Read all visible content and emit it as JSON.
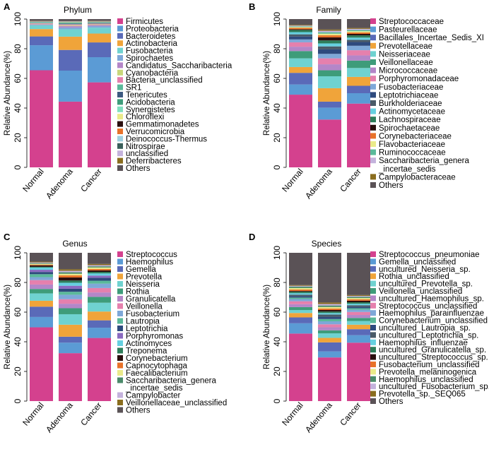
{
  "y_axis_label": "Relative Abundance(%)",
  "x_categories": [
    "Normal",
    "Adenoma",
    "Cancer"
  ],
  "panels": [
    {
      "letter": "A",
      "title": "Phylum"
    },
    {
      "letter": "B",
      "title": "Family"
    },
    {
      "letter": "C",
      "title": "Genus"
    },
    {
      "letter": "D",
      "title": "Species"
    }
  ],
  "chart_data": [
    {
      "type": "bar",
      "stacked": true,
      "panel": "A",
      "title": "Phylum",
      "ylabel": "Relative Abundance(%)",
      "ylim": [
        0,
        100
      ],
      "categories": [
        "Normal",
        "Adenoma",
        "Cancer"
      ],
      "series": [
        {
          "name": "Firmicutes",
          "color": "#d4418e",
          "values": [
            66,
            44.5,
            57.5
          ]
        },
        {
          "name": "Proteobacteria",
          "color": "#5b9bd5",
          "values": [
            17,
            21,
            17
          ]
        },
        {
          "name": "Bacteroidetes",
          "color": "#5a6ab8",
          "values": [
            6,
            14,
            10
          ]
        },
        {
          "name": "Actinobacteria",
          "color": "#f0a43a",
          "values": [
            5,
            9,
            6
          ]
        },
        {
          "name": "Fusobacteria",
          "color": "#6fd2d0",
          "values": [
            2.5,
            5,
            4
          ]
        },
        {
          "name": "Spirochaetes",
          "color": "#7ea8d8",
          "values": [
            0.4,
            1.2,
            1
          ]
        },
        {
          "name": "Candidatus_Saccharibacteria",
          "color": "#b486c8",
          "values": [
            0.4,
            1,
            0.8
          ]
        },
        {
          "name": "Cyanobacteria",
          "color": "#c9d77a",
          "values": [
            0.3,
            0.5,
            0.4
          ]
        },
        {
          "name": "Bacteria_unclassified",
          "color": "#e580ad",
          "values": [
            0.4,
            0.6,
            0.5
          ]
        },
        {
          "name": "SR1",
          "color": "#5bb99a",
          "values": [
            0.3,
            0.5,
            0.4
          ]
        },
        {
          "name": "Tenericutes",
          "color": "#3d5a80",
          "values": [
            0.2,
            0.3,
            0.3
          ]
        },
        {
          "name": "Acidobacteria",
          "color": "#3e9c7a",
          "values": [
            0.2,
            0.3,
            0.2
          ]
        },
        {
          "name": "Synergistetes",
          "color": "#80dfc0",
          "values": [
            0.2,
            0.3,
            0.2
          ]
        },
        {
          "name": "Chloroflexi",
          "color": "#eaea8a",
          "values": [
            0.1,
            0.2,
            0.2
          ]
        },
        {
          "name": "Gemmatimonadetes",
          "color": "#2a0e0e",
          "values": [
            0.1,
            0.1,
            0.1
          ]
        },
        {
          "name": "Verrucomicrobia",
          "color": "#e8722a",
          "values": [
            0.1,
            0.1,
            0.1
          ]
        },
        {
          "name": "Deinococcus-Thermus",
          "color": "#a0d0e0",
          "values": [
            0.1,
            0.1,
            0.1
          ]
        },
        {
          "name": "Nitrospirae",
          "color": "#3a5f5a",
          "values": [
            0.1,
            0.1,
            0.1
          ]
        },
        {
          "name": "unclassified",
          "color": "#c4b2dc",
          "values": [
            0.1,
            0.1,
            0.1
          ]
        },
        {
          "name": "Deferribacteres",
          "color": "#8a6d1e",
          "values": [
            0.1,
            0.1,
            0.1
          ]
        },
        {
          "name": "Others",
          "color": "#5a5256",
          "values": [
            1.2,
            1.4,
            1.2
          ]
        }
      ]
    },
    {
      "type": "bar",
      "stacked": true,
      "panel": "B",
      "title": "Family",
      "ylabel": "Relative Abundance(%)",
      "ylim": [
        0,
        100
      ],
      "categories": [
        "Normal",
        "Adenoma",
        "Cancer"
      ],
      "series": [
        {
          "name": "Streptococcaceae",
          "color": "#d4418e",
          "values": [
            50,
            32,
            43
          ]
        },
        {
          "name": "Pasteurellaceae",
          "color": "#5b9bd5",
          "values": [
            7,
            8,
            7
          ]
        },
        {
          "name": "Bacillales_Incertae_Sedis_XI",
          "color": "#5a6ab8",
          "values": [
            8,
            4,
            5
          ]
        },
        {
          "name": "Prevotellaceae",
          "color": "#f0a43a",
          "values": [
            4,
            9,
            6
          ]
        },
        {
          "name": "Neisseriaceae",
          "color": "#6fd2d0",
          "values": [
            6,
            8,
            6
          ]
        },
        {
          "name": "Veillonellaceae",
          "color": "#3e9c7a",
          "values": [
            5,
            4,
            5
          ]
        },
        {
          "name": "Micrococcaceae",
          "color": "#b486c8",
          "values": [
            3,
            4,
            3.5
          ]
        },
        {
          "name": "Porphyromonadaceae",
          "color": "#e580ad",
          "values": [
            3,
            4,
            3.5
          ]
        },
        {
          "name": "Fusobacteriaceae",
          "color": "#7ea8d8",
          "values": [
            2,
            3,
            3
          ]
        },
        {
          "name": "Leptotrichiaceae",
          "color": "#2e4a7e",
          "values": [
            2,
            3,
            2.5
          ]
        },
        {
          "name": "Burkholderiaceae",
          "color": "#4a5a68",
          "values": [
            1.5,
            2,
            1.5
          ]
        },
        {
          "name": "Actinomycetaceae",
          "color": "#66d0e0",
          "values": [
            1.5,
            2,
            1.5
          ]
        },
        {
          "name": "Lachnospiraceae",
          "color": "#2e7d5a",
          "values": [
            1.5,
            2,
            1.5
          ]
        },
        {
          "name": "Spirochaetaceae",
          "color": "#2a0e0e",
          "values": [
            0.5,
            2,
            1
          ]
        },
        {
          "name": "Corynebacteriaceae",
          "color": "#e8722a",
          "values": [
            1,
            1.5,
            1
          ]
        },
        {
          "name": "Flavobacteriaceae",
          "color": "#eaea8a",
          "values": [
            0.5,
            1,
            0.8
          ]
        },
        {
          "name": "Ruminococcaceae",
          "color": "#5bb99a",
          "values": [
            0.5,
            1,
            0.8
          ]
        },
        {
          "name": "Saccharibacteria_genera_incertae_sedis",
          "color": "#c4b2dc",
          "values": [
            0.5,
            1,
            0.8
          ]
        },
        {
          "name": "Campylobacteraceae",
          "color": "#8a6d1e",
          "values": [
            0.5,
            0.8,
            0.6
          ]
        },
        {
          "name": "Others",
          "color": "#5a5256",
          "values": [
            4,
            7,
            6
          ]
        }
      ]
    },
    {
      "type": "bar",
      "stacked": true,
      "panel": "C",
      "title": "Genus",
      "ylabel": "Relative Abundance(%)",
      "ylim": [
        0,
        100
      ],
      "categories": [
        "Normal",
        "Adenoma",
        "Cancer"
      ],
      "series": [
        {
          "name": "Streptococcus",
          "color": "#d4418e",
          "values": [
            50,
            32,
            43
          ]
        },
        {
          "name": "Haemophilus",
          "color": "#5b9bd5",
          "values": [
            7,
            7,
            7
          ]
        },
        {
          "name": "Gemella",
          "color": "#5a6ab8",
          "values": [
            7,
            4,
            5
          ]
        },
        {
          "name": "Prevotella",
          "color": "#f0a43a",
          "values": [
            4,
            8,
            6
          ]
        },
        {
          "name": "Neisseria",
          "color": "#6fd2d0",
          "values": [
            5,
            7,
            6
          ]
        },
        {
          "name": "Rothia",
          "color": "#3e9c7a",
          "values": [
            3,
            4,
            4
          ]
        },
        {
          "name": "Granulicatella",
          "color": "#b486c8",
          "values": [
            3,
            3,
            3
          ]
        },
        {
          "name": "Veillonella",
          "color": "#e580ad",
          "values": [
            3,
            3,
            3
          ]
        },
        {
          "name": "Fusobacterium",
          "color": "#7ea8d8",
          "values": [
            2,
            3,
            3
          ]
        },
        {
          "name": "Lautropia",
          "color": "#5bb99a",
          "values": [
            2,
            2,
            2
          ]
        },
        {
          "name": "Leptotrichia",
          "color": "#2e4a7e",
          "values": [
            1.5,
            2,
            2
          ]
        },
        {
          "name": "Porphyromonas",
          "color": "#8a6ac0",
          "values": [
            1.5,
            2,
            1.5
          ]
        },
        {
          "name": "Actinomyces",
          "color": "#66d0e0",
          "values": [
            1.5,
            2,
            1.5
          ]
        },
        {
          "name": "Treponema",
          "color": "#2e7d5a",
          "values": [
            0.5,
            1.5,
            1
          ]
        },
        {
          "name": "Corynebacterium",
          "color": "#2a0e0e",
          "values": [
            1,
            2,
            1
          ]
        },
        {
          "name": "Capnocytophaga",
          "color": "#e8722a",
          "values": [
            0.5,
            1.5,
            1
          ]
        },
        {
          "name": "Faecalibacterium",
          "color": "#eaea8a",
          "values": [
            0.5,
            1,
            1
          ]
        },
        {
          "name": "Saccharibacteria_genera_incertae_sedis",
          "color": "#4a8a6a",
          "values": [
            0.5,
            1,
            0.8
          ]
        },
        {
          "name": "Campylobacter",
          "color": "#c4b2dc",
          "values": [
            0.5,
            1,
            0.8
          ]
        },
        {
          "name": "Veillonellaceae_unclassified",
          "color": "#8a6d1e",
          "values": [
            0.5,
            1,
            0.8
          ]
        },
        {
          "name": "Others",
          "color": "#5a5256",
          "values": [
            6,
            11,
            7.6
          ]
        }
      ]
    },
    {
      "type": "bar",
      "stacked": true,
      "panel": "D",
      "title": "Species",
      "ylabel": "Relative Abundance(%)",
      "ylim": [
        0,
        100
      ],
      "categories": [
        "Normal",
        "Adenoma",
        "Cancer"
      ],
      "series": [
        {
          "name": "Streptococcus_pneumoniae",
          "color": "#d4418e",
          "values": [
            46,
            29,
            39
          ]
        },
        {
          "name": "Gemella_unclassified",
          "color": "#5b9bd5",
          "values": [
            7,
            4,
            5
          ]
        },
        {
          "name": "uncultured_Neisseria_sp.",
          "color": "#5a6ab8",
          "values": [
            4,
            6,
            4
          ]
        },
        {
          "name": "Rothia_unclassified",
          "color": "#f0a43a",
          "values": [
            3,
            3,
            3
          ]
        },
        {
          "name": "uncultured_Prevotella_sp.",
          "color": "#6fd2d0",
          "values": [
            2,
            3,
            2.5
          ]
        },
        {
          "name": "Veillonella_unclassified",
          "color": "#3e9c7a",
          "values": [
            2,
            2,
            2
          ]
        },
        {
          "name": "uncultured_Haemophilus_sp.",
          "color": "#b486c8",
          "values": [
            2,
            2,
            2
          ]
        },
        {
          "name": "Streptococcus_unclassified",
          "color": "#e580ad",
          "values": [
            2,
            2,
            2
          ]
        },
        {
          "name": "Haemophilus_parainfluenzae",
          "color": "#7ea8d8",
          "values": [
            1.5,
            2,
            1.5
          ]
        },
        {
          "name": "Corynebacterium_unclassified",
          "color": "#5bb99a",
          "values": [
            1,
            1.5,
            1
          ]
        },
        {
          "name": "uncultured_Lautropia_sp.",
          "color": "#2e4a7e",
          "values": [
            1,
            1.5,
            1
          ]
        },
        {
          "name": "uncultured_Leptotrichia_sp.",
          "color": "#4a5a68",
          "values": [
            1,
            1.5,
            1
          ]
        },
        {
          "name": "Haemophilus_influenzae",
          "color": "#66d0e0",
          "values": [
            1,
            1,
            1
          ]
        },
        {
          "name": "uncultured_Granulicatella_sp.",
          "color": "#2e7d5a",
          "values": [
            1,
            1,
            1
          ]
        },
        {
          "name": "uncultured_Streptococcus_sp.",
          "color": "#2a0e0e",
          "values": [
            0.5,
            1,
            1
          ]
        },
        {
          "name": "Fusobacterium_unclassified",
          "color": "#e8722a",
          "values": [
            1,
            1,
            1
          ]
        },
        {
          "name": "Prevotella_melaninogenica",
          "color": "#eaea8a",
          "values": [
            1,
            1,
            0.8
          ]
        },
        {
          "name": "Haemophilus_unclassified",
          "color": "#4a8a6a",
          "values": [
            1,
            1,
            0.8
          ]
        },
        {
          "name": "uncultured_Fusobacterium_sp.",
          "color": "#c4b2dc",
          "values": [
            0.5,
            1,
            0.6
          ]
        },
        {
          "name": "Prevotella_sp._SEQ065",
          "color": "#8a6d1e",
          "values": [
            0.5,
            1,
            0.6
          ]
        },
        {
          "name": "Others",
          "color": "#5a5256",
          "values": [
            22,
            33,
            28.2
          ]
        }
      ]
    }
  ]
}
